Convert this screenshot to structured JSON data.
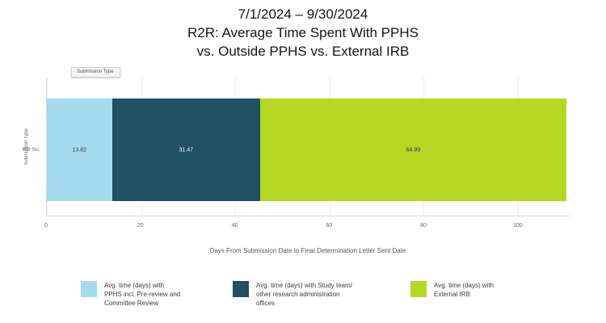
{
  "title": {
    "line1": "7/1/2024 – 9/30/2024",
    "line2": "R2R: Average Time Spent With PPHS",
    "line3": "vs. Outside PPHS vs. External IRB"
  },
  "chart": {
    "legend_header": "Submission Type",
    "y_axis_title": "Submission Type",
    "y_tick": "IRB Stu",
    "x_axis_title": "Days From Submission Date to Final Determination Letter Sent Date"
  },
  "chart_data": {
    "type": "bar",
    "orientation": "horizontal",
    "stacked": true,
    "title": "R2R: Average Time Spent With PPHS vs. Outside PPHS vs. External IRB",
    "subtitle": "7/1/2024 – 9/30/2024",
    "categories": [
      "IRB Stu"
    ],
    "series": [
      {
        "name": "Avg. time (days) with PPHS incl. Pre-review and Committee Review",
        "values": [
          13.82
        ],
        "label": "13.82",
        "color": "#a5dbee",
        "label_color": "#30363a"
      },
      {
        "name": "Avg. time (days) with Study team/ other research administration offices",
        "values": [
          31.47
        ],
        "label": "31.47",
        "color": "#1f5064",
        "label_color": "#ffffff"
      },
      {
        "name": "",
        "values": [
          0
        ],
        "label": "0",
        "color": "#1f5064",
        "label_color": "#ffffff"
      },
      {
        "name": "Avg. time (days) with External IRB",
        "values": [
          64.99
        ],
        "label": "64.99",
        "color": "#b3d824",
        "label_color": "#30363a"
      }
    ],
    "xlabel": "Days From Submission Date to Final Determination Letter Sent Date",
    "ylabel": "Submission Type",
    "xlim": [
      0,
      111
    ],
    "x_ticks": [
      0,
      20,
      40,
      60,
      80,
      100
    ],
    "grid": true,
    "legend_position": "bottom"
  },
  "legend": {
    "items": [
      {
        "label": "Avg. time (days) with PPHS incl. Pre-review and Committee Review",
        "color": "#a5dbee"
      },
      {
        "label": "Avg. time (days) with Study team/ other research administration offices",
        "color": "#1f5064"
      },
      {
        "label": "Avg. time (days) with External IRB",
        "color": "#b3d824"
      }
    ]
  }
}
